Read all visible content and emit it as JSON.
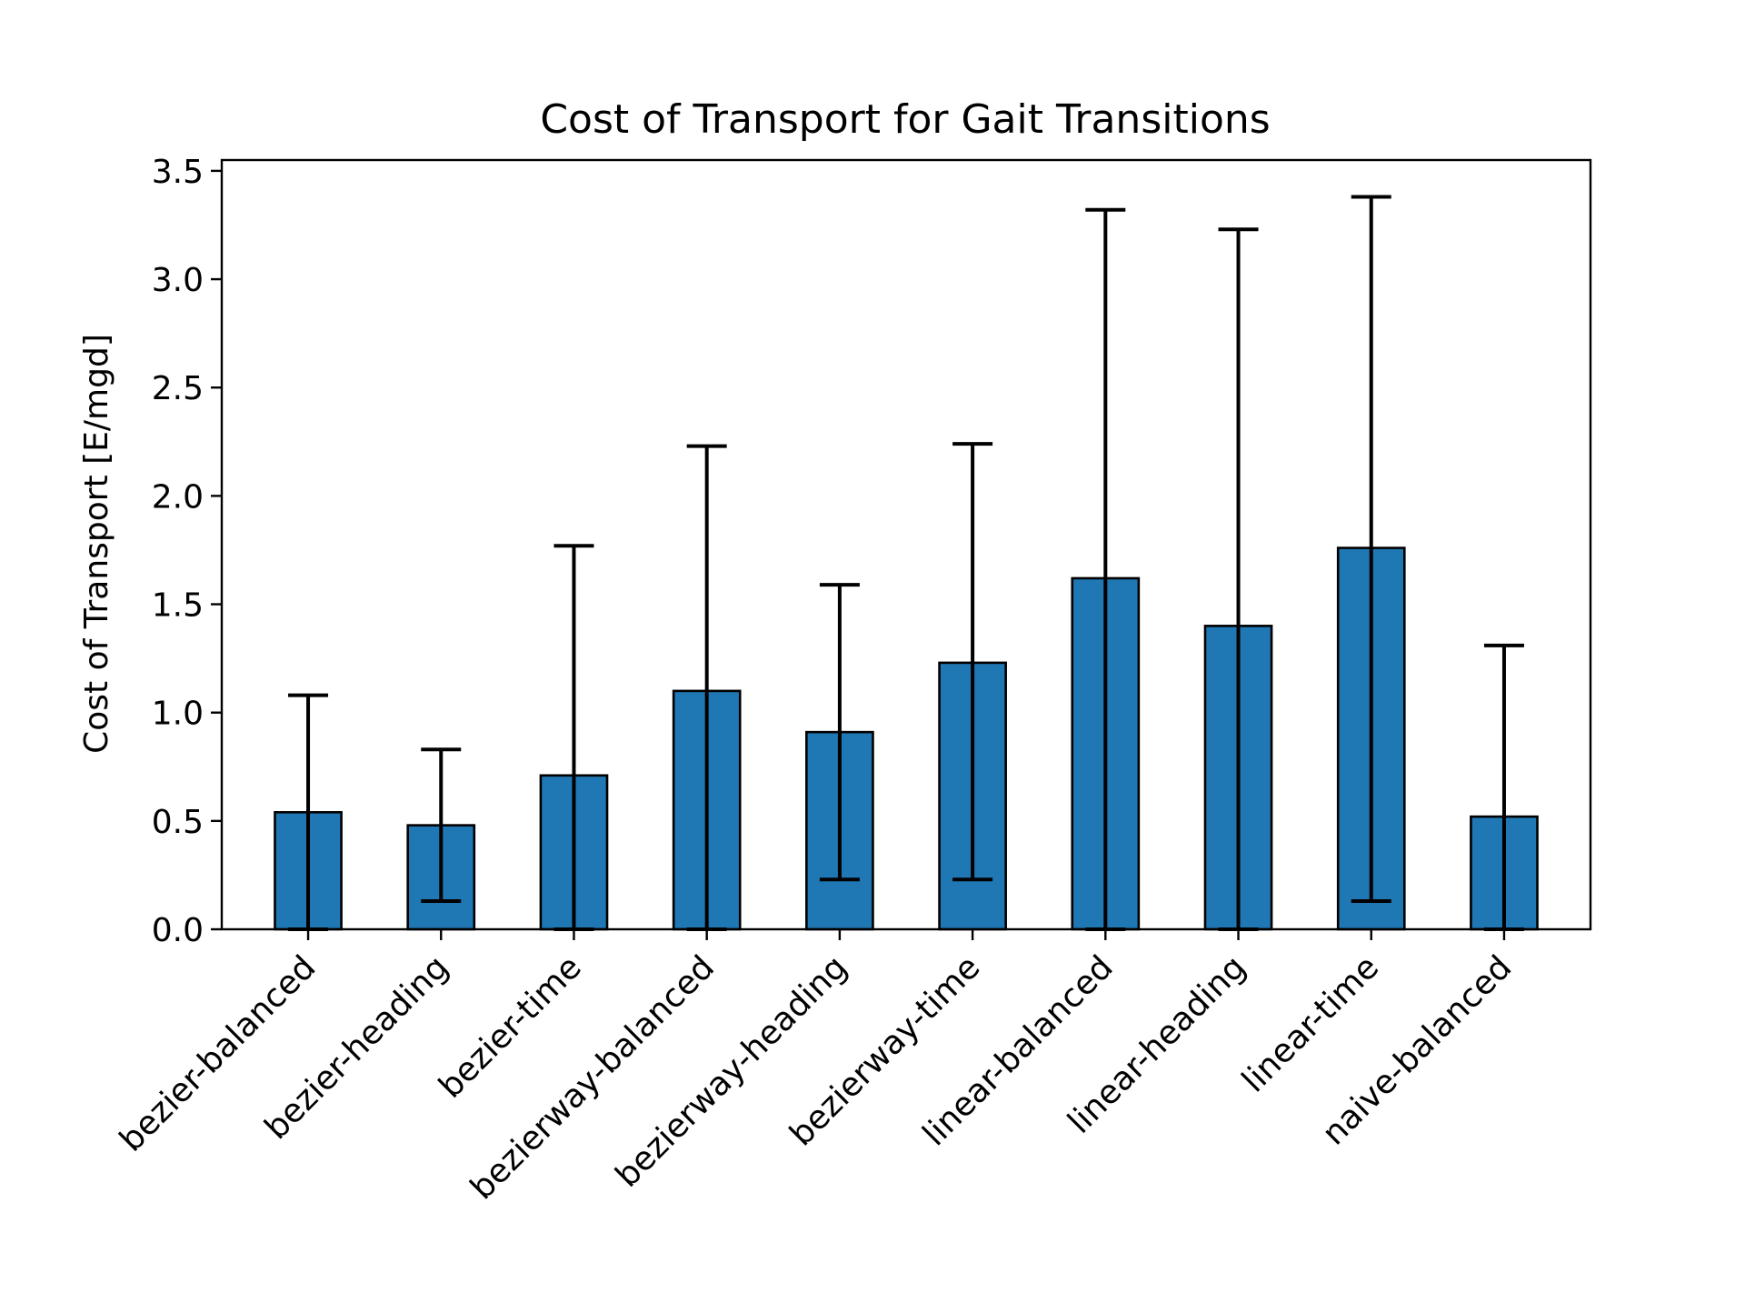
{
  "chart_data": {
    "type": "bar",
    "title": "Cost of Transport for Gait Transitions",
    "xlabel": "",
    "ylabel": "Cost of Transport [E/mgd]",
    "ylim": [
      0,
      3.55
    ],
    "yticks": [
      0.0,
      0.5,
      1.0,
      1.5,
      2.0,
      2.5,
      3.0,
      3.5
    ],
    "ytick_labels": [
      "0.0",
      "0.5",
      "1.0",
      "1.5",
      "2.0",
      "2.5",
      "3.0",
      "3.5"
    ],
    "grid": false,
    "legend": "none",
    "categories": [
      "bezier-balanced",
      "bezier-heading",
      "bezier-time",
      "bezierway-balanced",
      "bezierway-heading",
      "bezierway-time",
      "linear-balanced",
      "linear-heading",
      "linear-time",
      "naive-balanced"
    ],
    "values": [
      0.54,
      0.48,
      0.71,
      1.1,
      0.91,
      1.23,
      1.62,
      1.4,
      1.76,
      0.52
    ],
    "error_low": [
      0.0,
      0.13,
      0.0,
      0.0,
      0.23,
      0.23,
      0.0,
      0.0,
      0.13,
      0.0
    ],
    "error_high": [
      1.08,
      0.83,
      1.77,
      2.23,
      1.59,
      2.24,
      3.32,
      3.23,
      3.38,
      1.31
    ],
    "colors": {
      "bar_fill": "#1f77b4",
      "bar_edge": "#000000",
      "error_bar": "#000000"
    }
  }
}
